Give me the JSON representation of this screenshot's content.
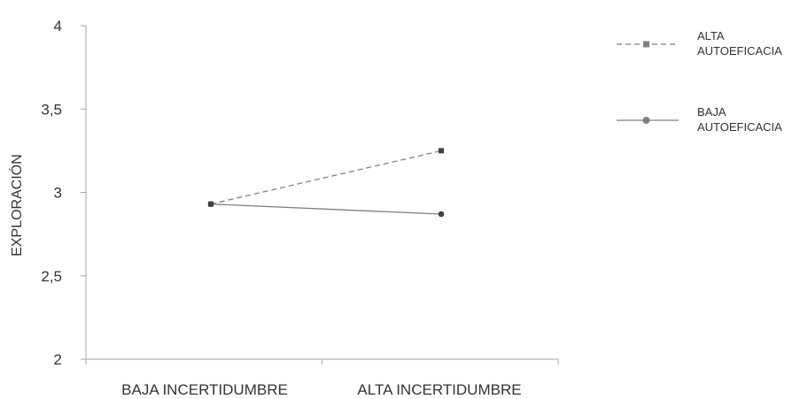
{
  "chart_data": {
    "type": "line",
    "title": "",
    "xlabel": "",
    "ylabel": "EXPLORACIÓN",
    "ylim": [
      2,
      4
    ],
    "yticks": [
      "2",
      "2,5",
      "3",
      "3,5",
      "4"
    ],
    "ytick_values": [
      2,
      2.5,
      3,
      3.5,
      4
    ],
    "categories": [
      "BAJA INCERTIDUMBRE",
      "ALTA INCERTIDUMBRE"
    ],
    "grid": false,
    "legend_position": "top-right",
    "series": [
      {
        "name_lines": [
          "ALTA",
          "AUTOEFICACIA"
        ],
        "values": [
          2.93,
          3.25
        ],
        "line_style": "dashed",
        "marker": "square",
        "color": "#808080"
      },
      {
        "name_lines": [
          "BAJA",
          "AUTOEFICACIA"
        ],
        "values": [
          2.93,
          2.87
        ],
        "line_style": "solid",
        "marker": "circle",
        "color": "#808080"
      }
    ],
    "axis_color": "#a6a6a6",
    "marker_color": "#404040"
  }
}
